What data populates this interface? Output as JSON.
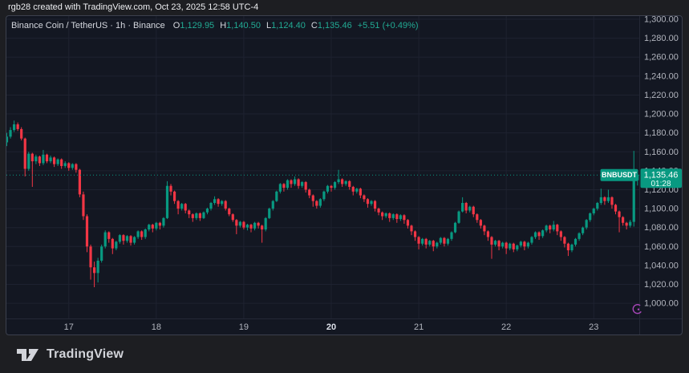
{
  "attribution": "rgb28 created with TradingView.com, Oct 23, 2025 12:58 UTC-4",
  "legend": {
    "symbol_title": "Binance Coin / TetherUS · 1h · Binance",
    "ohlc": [
      {
        "label": "O",
        "value": "1,129.95"
      },
      {
        "label": "H",
        "value": "1,140.50"
      },
      {
        "label": "L",
        "value": "1,124.40"
      },
      {
        "label": "C",
        "value": "1,135.46"
      }
    ],
    "change": "+5.51 (+0.49%)"
  },
  "price_line": {
    "symbol_label": "BNBUSDT",
    "price_label": "1,135.46",
    "countdown": "01:28",
    "value": 1135.46
  },
  "footer": {
    "brand": "TradingView"
  },
  "colors": {
    "up": "#089981",
    "down": "#f23645",
    "grid": "#1e2230",
    "axis_text": "#b2b5be",
    "axis_text_strong": "#dde1ea",
    "separator": "#242836",
    "badge": "#089981",
    "event_marker": "#ab47bc"
  },
  "chart_data": {
    "type": "candlestick",
    "title": "Binance Coin / TetherUS",
    "symbol": "BNBUSDT",
    "exchange": "Binance",
    "interval": "1h",
    "time_range": "Oct 16 07:00 - Oct 23 12:00, 2025",
    "visible_price_range": [
      984,
      1303.4
    ],
    "y_ticks": [
      {
        "label": "1,300.00",
        "value": 1300
      },
      {
        "label": "1,280.00",
        "value": 1280
      },
      {
        "label": "1,260.00",
        "value": 1260
      },
      {
        "label": "1,240.00",
        "value": 1240
      },
      {
        "label": "1,220.00",
        "value": 1220
      },
      {
        "label": "1,200.00",
        "value": 1200
      },
      {
        "label": "1,180.00",
        "value": 1180
      },
      {
        "label": "1,160.00",
        "value": 1160
      },
      {
        "label": "1,140.00",
        "value": 1140
      },
      {
        "label": "1,120.00",
        "value": 1120
      },
      {
        "label": "1,100.00",
        "value": 1100
      },
      {
        "label": "1,080.00",
        "value": 1080
      },
      {
        "label": "1,060.00",
        "value": 1060
      },
      {
        "label": "1,040.00",
        "value": 1040
      },
      {
        "label": "1,020.00",
        "value": 1020
      },
      {
        "label": "1,000.00",
        "value": 1000
      }
    ],
    "x_ticks": [
      {
        "label": "17",
        "candle_index": 17,
        "strong": false
      },
      {
        "label": "18",
        "candle_index": 41,
        "strong": false
      },
      {
        "label": "19",
        "candle_index": 65,
        "strong": false
      },
      {
        "label": "20",
        "candle_index": 89,
        "strong": true
      },
      {
        "label": "21",
        "candle_index": 113,
        "strong": false
      },
      {
        "label": "22",
        "candle_index": 137,
        "strong": false
      },
      {
        "label": "23",
        "candle_index": 161,
        "strong": false
      }
    ],
    "event_marker": {
      "candle_index": 173,
      "price": 994
    },
    "last_candle": {
      "open": 1129.95,
      "high": 1140.5,
      "low": 1124.4,
      "close": 1135.46
    },
    "candles": [
      [
        1170,
        1180,
        1166,
        1176
      ],
      [
        1176,
        1186,
        1174,
        1183
      ],
      [
        1183,
        1193,
        1181,
        1189
      ],
      [
        1189,
        1191,
        1182,
        1184
      ],
      [
        1184,
        1186,
        1172,
        1174
      ],
      [
        1174,
        1175,
        1134,
        1142
      ],
      [
        1142,
        1160,
        1140,
        1158
      ],
      [
        1158,
        1159,
        1123,
        1150
      ],
      [
        1150,
        1157,
        1147,
        1155
      ],
      [
        1155,
        1156,
        1145,
        1148
      ],
      [
        1148,
        1162,
        1146,
        1157
      ],
      [
        1157,
        1158,
        1148,
        1150
      ],
      [
        1150,
        1156,
        1148,
        1154
      ],
      [
        1154,
        1155,
        1144,
        1147
      ],
      [
        1147,
        1153,
        1145,
        1152
      ],
      [
        1152,
        1153,
        1142,
        1145
      ],
      [
        1145,
        1150,
        1143,
        1148
      ],
      [
        1148,
        1149,
        1140,
        1143
      ],
      [
        1143,
        1148,
        1141,
        1147
      ],
      [
        1147,
        1148,
        1138,
        1141
      ],
      [
        1141,
        1142,
        1112,
        1115
      ],
      [
        1115,
        1118,
        1088,
        1092
      ],
      [
        1092,
        1094,
        1054,
        1060
      ],
      [
        1060,
        1062,
        1025,
        1038
      ],
      [
        1038,
        1044,
        1017,
        1032
      ],
      [
        1032,
        1048,
        1022,
        1045
      ],
      [
        1045,
        1062,
        1043,
        1060
      ],
      [
        1060,
        1077,
        1058,
        1075
      ],
      [
        1075,
        1076,
        1064,
        1068
      ],
      [
        1068,
        1069,
        1052,
        1058
      ],
      [
        1058,
        1066,
        1056,
        1065
      ],
      [
        1065,
        1073,
        1063,
        1072
      ],
      [
        1072,
        1073,
        1062,
        1066
      ],
      [
        1066,
        1072,
        1064,
        1071
      ],
      [
        1071,
        1072,
        1061,
        1064
      ],
      [
        1064,
        1071,
        1062,
        1070
      ],
      [
        1070,
        1077,
        1068,
        1076
      ],
      [
        1076,
        1077,
        1067,
        1070
      ],
      [
        1070,
        1079,
        1068,
        1078
      ],
      [
        1078,
        1084,
        1076,
        1083
      ],
      [
        1083,
        1084,
        1075,
        1079
      ],
      [
        1079,
        1086,
        1077,
        1085
      ],
      [
        1085,
        1086,
        1078,
        1082
      ],
      [
        1082,
        1091,
        1080,
        1090
      ],
      [
        1090,
        1129,
        1089,
        1124
      ],
      [
        1124,
        1126,
        1114,
        1118
      ],
      [
        1118,
        1119,
        1105,
        1108
      ],
      [
        1108,
        1109,
        1094,
        1100
      ],
      [
        1100,
        1106,
        1098,
        1105
      ],
      [
        1105,
        1106,
        1095,
        1098
      ],
      [
        1098,
        1099,
        1090,
        1094
      ],
      [
        1094,
        1095,
        1086,
        1090
      ],
      [
        1090,
        1096,
        1088,
        1095
      ],
      [
        1095,
        1096,
        1087,
        1090
      ],
      [
        1090,
        1097,
        1089,
        1096
      ],
      [
        1096,
        1101,
        1094,
        1100
      ],
      [
        1100,
        1107,
        1098,
        1106
      ],
      [
        1106,
        1113,
        1104,
        1110
      ],
      [
        1110,
        1111,
        1102,
        1105
      ],
      [
        1105,
        1109,
        1103,
        1108
      ],
      [
        1108,
        1109,
        1098,
        1100
      ],
      [
        1100,
        1101,
        1092,
        1094
      ],
      [
        1094,
        1095,
        1086,
        1088
      ],
      [
        1088,
        1089,
        1073,
        1082
      ],
      [
        1082,
        1087,
        1080,
        1086
      ],
      [
        1086,
        1087,
        1078,
        1080
      ],
      [
        1080,
        1084,
        1077,
        1083
      ],
      [
        1083,
        1084,
        1075,
        1079
      ],
      [
        1079,
        1086,
        1077,
        1085
      ],
      [
        1085,
        1086,
        1079,
        1082
      ],
      [
        1082,
        1083,
        1064,
        1078
      ],
      [
        1078,
        1091,
        1076,
        1090
      ],
      [
        1090,
        1101,
        1089,
        1100
      ],
      [
        1100,
        1109,
        1098,
        1108
      ],
      [
        1108,
        1119,
        1107,
        1118
      ],
      [
        1118,
        1127,
        1116,
        1126
      ],
      [
        1126,
        1127,
        1118,
        1122
      ],
      [
        1122,
        1131,
        1120,
        1130
      ],
      [
        1130,
        1131,
        1122,
        1126
      ],
      [
        1126,
        1134,
        1124,
        1131
      ],
      [
        1131,
        1132,
        1121,
        1124
      ],
      [
        1124,
        1129,
        1122,
        1128
      ],
      [
        1128,
        1129,
        1117,
        1120
      ],
      [
        1120,
        1121,
        1111,
        1114
      ],
      [
        1114,
        1115,
        1102,
        1108
      ],
      [
        1108,
        1109,
        1100,
        1103
      ],
      [
        1103,
        1111,
        1101,
        1110
      ],
      [
        1110,
        1119,
        1108,
        1118
      ],
      [
        1118,
        1125,
        1116,
        1124
      ],
      [
        1124,
        1125,
        1118,
        1122
      ],
      [
        1122,
        1129,
        1120,
        1128
      ],
      [
        1128,
        1141,
        1126,
        1131
      ],
      [
        1131,
        1132,
        1123,
        1126
      ],
      [
        1126,
        1130,
        1124,
        1129
      ],
      [
        1129,
        1130,
        1120,
        1123
      ],
      [
        1123,
        1124,
        1114,
        1118
      ],
      [
        1118,
        1122,
        1116,
        1121
      ],
      [
        1121,
        1122,
        1111,
        1114
      ],
      [
        1114,
        1115,
        1107,
        1110
      ],
      [
        1110,
        1111,
        1101,
        1105
      ],
      [
        1105,
        1109,
        1103,
        1108
      ],
      [
        1108,
        1109,
        1097,
        1100
      ],
      [
        1100,
        1101,
        1093,
        1096
      ],
      [
        1096,
        1097,
        1088,
        1092
      ],
      [
        1092,
        1096,
        1090,
        1095
      ],
      [
        1095,
        1096,
        1086,
        1090
      ],
      [
        1090,
        1095,
        1088,
        1094
      ],
      [
        1094,
        1095,
        1085,
        1089
      ],
      [
        1089,
        1094,
        1087,
        1093
      ],
      [
        1093,
        1094,
        1084,
        1088
      ],
      [
        1088,
        1089,
        1079,
        1082
      ],
      [
        1082,
        1083,
        1072,
        1076
      ],
      [
        1076,
        1077,
        1066,
        1070
      ],
      [
        1070,
        1071,
        1057,
        1063
      ],
      [
        1063,
        1069,
        1061,
        1068
      ],
      [
        1068,
        1069,
        1058,
        1062
      ],
      [
        1062,
        1067,
        1060,
        1066
      ],
      [
        1066,
        1067,
        1055,
        1060
      ],
      [
        1060,
        1065,
        1058,
        1064
      ],
      [
        1064,
        1070,
        1062,
        1069
      ],
      [
        1069,
        1070,
        1060,
        1063
      ],
      [
        1063,
        1069,
        1061,
        1068
      ],
      [
        1068,
        1076,
        1066,
        1075
      ],
      [
        1075,
        1086,
        1074,
        1085
      ],
      [
        1085,
        1098,
        1084,
        1097
      ],
      [
        1097,
        1112,
        1096,
        1106
      ],
      [
        1106,
        1107,
        1095,
        1098
      ],
      [
        1098,
        1103,
        1096,
        1102
      ],
      [
        1102,
        1103,
        1091,
        1094
      ],
      [
        1094,
        1095,
        1085,
        1088
      ],
      [
        1088,
        1089,
        1079,
        1082
      ],
      [
        1082,
        1083,
        1072,
        1076
      ],
      [
        1076,
        1077,
        1066,
        1070
      ],
      [
        1070,
        1071,
        1047,
        1062
      ],
      [
        1062,
        1067,
        1060,
        1066
      ],
      [
        1066,
        1067,
        1056,
        1060
      ],
      [
        1060,
        1065,
        1058,
        1064
      ],
      [
        1064,
        1065,
        1052,
        1058
      ],
      [
        1058,
        1064,
        1056,
        1063
      ],
      [
        1063,
        1064,
        1054,
        1057
      ],
      [
        1057,
        1062,
        1055,
        1061
      ],
      [
        1061,
        1066,
        1059,
        1065
      ],
      [
        1065,
        1066,
        1056,
        1060
      ],
      [
        1060,
        1065,
        1058,
        1064
      ],
      [
        1064,
        1071,
        1062,
        1070
      ],
      [
        1070,
        1076,
        1068,
        1075
      ],
      [
        1075,
        1076,
        1067,
        1071
      ],
      [
        1071,
        1078,
        1069,
        1077
      ],
      [
        1077,
        1083,
        1075,
        1082
      ],
      [
        1082,
        1083,
        1074,
        1078
      ],
      [
        1078,
        1087,
        1076,
        1083
      ],
      [
        1083,
        1084,
        1072,
        1076
      ],
      [
        1076,
        1077,
        1066,
        1070
      ],
      [
        1070,
        1071,
        1059,
        1063
      ],
      [
        1063,
        1064,
        1050,
        1056
      ],
      [
        1056,
        1063,
        1054,
        1062
      ],
      [
        1062,
        1069,
        1060,
        1068
      ],
      [
        1068,
        1075,
        1066,
        1074
      ],
      [
        1074,
        1081,
        1072,
        1080
      ],
      [
        1080,
        1089,
        1078,
        1088
      ],
      [
        1088,
        1096,
        1086,
        1095
      ],
      [
        1095,
        1101,
        1093,
        1100
      ],
      [
        1100,
        1107,
        1098,
        1106
      ],
      [
        1106,
        1121,
        1104,
        1112
      ],
      [
        1112,
        1113,
        1104,
        1108
      ],
      [
        1108,
        1120,
        1106,
        1112
      ],
      [
        1112,
        1113,
        1100,
        1104
      ],
      [
        1104,
        1105,
        1094,
        1097
      ],
      [
        1097,
        1098,
        1075,
        1091
      ],
      [
        1091,
        1092,
        1082,
        1085
      ],
      [
        1085,
        1086,
        1078,
        1082
      ],
      [
        1082,
        1088,
        1080,
        1086
      ],
      [
        1086,
        1161,
        1081,
        1130
      ],
      [
        1129.95,
        1140.5,
        1124.4,
        1135.46
      ]
    ]
  }
}
